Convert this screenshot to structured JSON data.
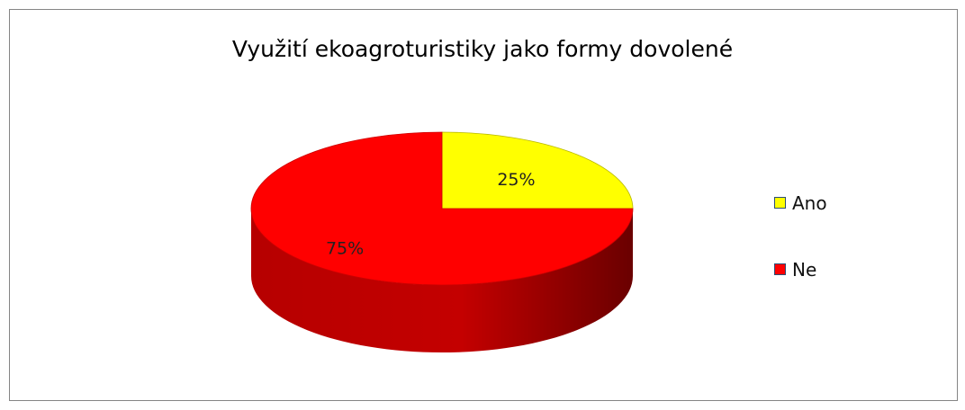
{
  "chart_data": {
    "type": "pie",
    "title": "Využití ekoagroturistiky jako formy dovolené",
    "categories": [
      "Ano",
      "Ne"
    ],
    "values": [
      25,
      75
    ],
    "data_labels": [
      "25%",
      "75%"
    ],
    "colors": [
      "#ffff00",
      "#ff0000"
    ],
    "legend_placement": "right",
    "style": "3d"
  }
}
